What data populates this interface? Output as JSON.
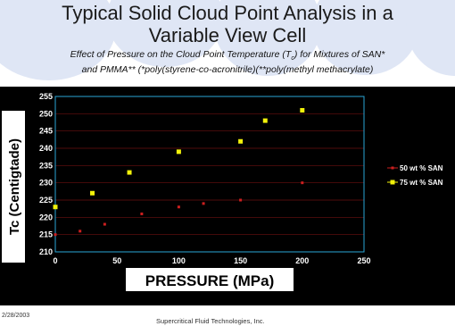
{
  "title_line1": "Typical Solid Cloud Point Analysis in a",
  "title_line2": "Variable View Cell",
  "subtitle_line1": "Effect of Pressure on the Cloud Point Temperature (T",
  "subtitle_sub": "c",
  "subtitle_line1_end": ") for Mixtures of SAN*",
  "subtitle_line2": "and PMMA**  (*poly(styrene-co-acronitrile)(**poly(methyl methacrylate)",
  "footer_date": "2/28/2003",
  "footer_company": "Supercritical Fluid Technologies, Inc.",
  "colors": {
    "background": "#000000",
    "frame": "#2aa6d6",
    "series1": "#cc1f1f",
    "series2": "#f2f20a",
    "text": "#ffffff"
  },
  "chart_data": {
    "type": "scatter",
    "xlabel": "PRESSURE (MPa)",
    "ylabel": "Tc (Centigtade)",
    "xlim": [
      0,
      250
    ],
    "ylim": [
      210,
      255
    ],
    "xticks": [
      0,
      50,
      100,
      150,
      200,
      250
    ],
    "yticks": [
      210,
      215,
      220,
      225,
      230,
      235,
      240,
      245,
      250,
      255
    ],
    "grid": "horizontal",
    "legend": "right",
    "series": [
      {
        "name": "50 wt % SAN",
        "color": "#cc1f1f",
        "x": [
          0,
          20,
          40,
          70,
          100,
          120,
          150,
          200
        ],
        "y": [
          215,
          216,
          218,
          221,
          223,
          224,
          225,
          230
        ]
      },
      {
        "name": "75 wt % SAN",
        "color": "#f2f20a",
        "x": [
          0,
          30,
          60,
          100,
          150,
          170,
          200
        ],
        "y": [
          223,
          227,
          233,
          239,
          242,
          248,
          251
        ]
      }
    ]
  }
}
